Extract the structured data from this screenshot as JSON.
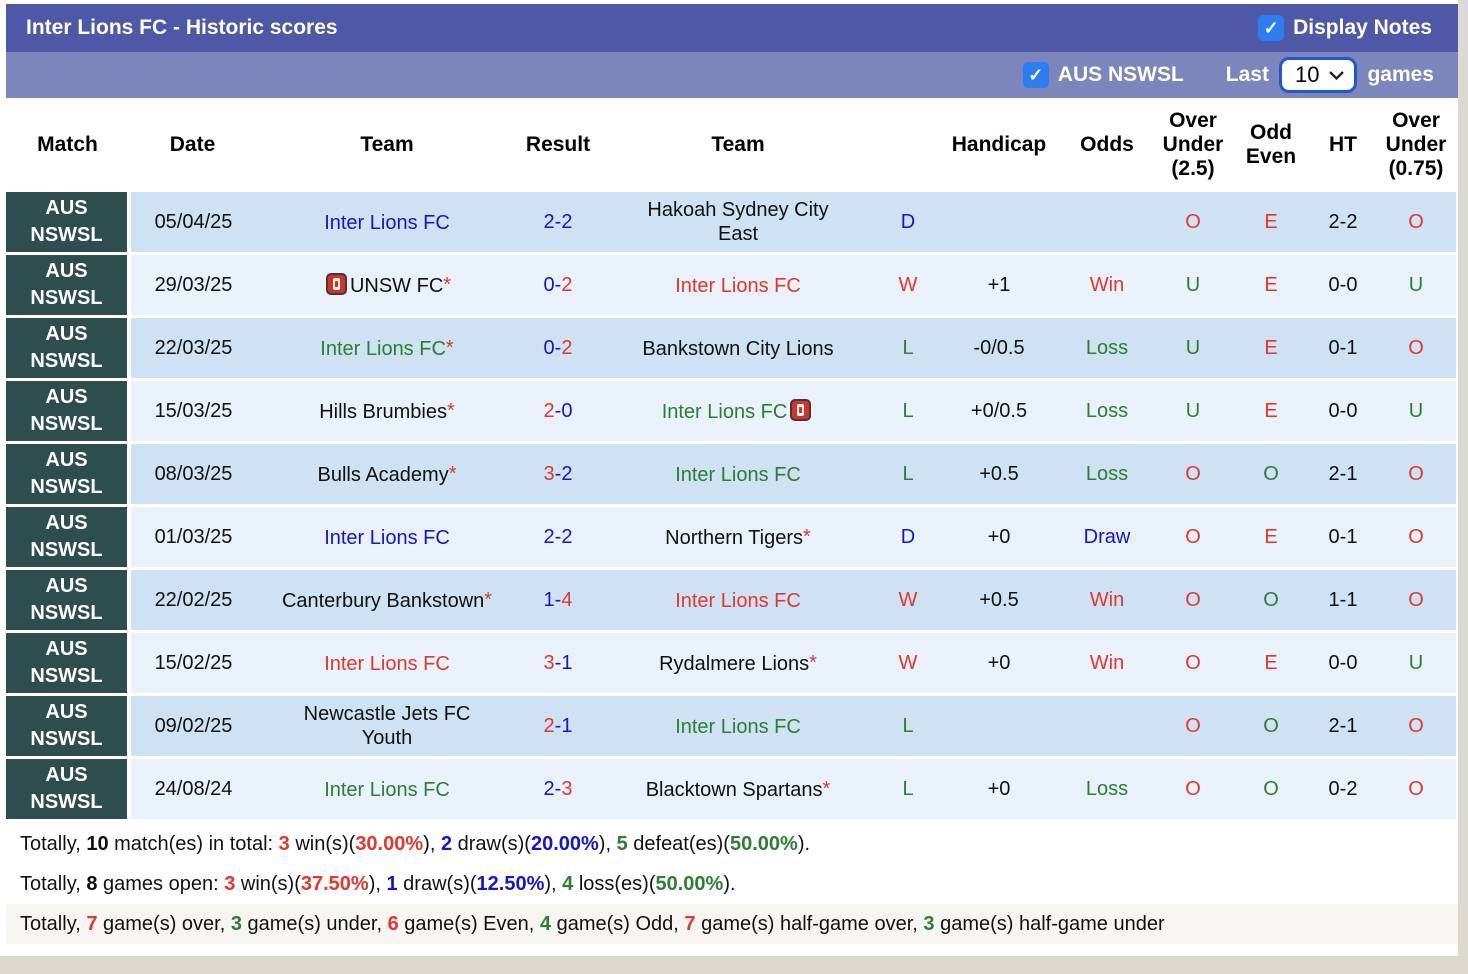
{
  "header": {
    "title": "Inter Lions FC - Historic scores",
    "display_notes": "Display Notes",
    "display_notes_checked": true,
    "league_filter": "AUS NSWSL",
    "league_checked": true,
    "last_label": "Last",
    "games_count": "10",
    "games_label": "games"
  },
  "colors": {
    "bar_dark": "#4e58a7",
    "bar_light": "#7c86bc",
    "league_cell": "#2e4d4d",
    "row_odd": "#cfe2f4",
    "row_even": "#e9f1fa",
    "win_red": "#e2372b",
    "draw_blue": "#1515cd",
    "loss_green": "#2e7d32",
    "checkbox_blue": "#2d7df2",
    "select_border": "#2356d0"
  },
  "table": {
    "columns": [
      {
        "label": "Match",
        "key": "match"
      },
      {
        "label": "Date",
        "key": "date"
      },
      {
        "label": "Team",
        "key": "home-team"
      },
      {
        "label": "Result",
        "key": "result"
      },
      {
        "label": "Team",
        "key": "away-team"
      },
      {
        "label": "",
        "key": "wdl"
      },
      {
        "label": "Handicap",
        "key": "handicap"
      },
      {
        "label": "Odds",
        "key": "odds"
      },
      {
        "label": "Over Under (2.5)",
        "key": "over-under-2-5"
      },
      {
        "label": "Odd Even",
        "key": "odd-even"
      },
      {
        "label": "HT",
        "key": "ht"
      },
      {
        "label": "Over Under (0.75)",
        "key": "over-under-0-75"
      }
    ],
    "rows": [
      {
        "league": "AUS NSWSL",
        "date": "05/04/25",
        "team1": {
          "name": "Inter Lions FC",
          "color": "blue",
          "asterisk": false,
          "redcard": ""
        },
        "score": {
          "home": "2",
          "home_color": "blue",
          "away": "2",
          "away_color": "blue"
        },
        "team2": {
          "name": "Hakoah Sydney City East",
          "color": "black",
          "asterisk": false,
          "redcard": ""
        },
        "wdl": {
          "text": "D",
          "color": "blue"
        },
        "handicap": "",
        "odds": {
          "text": "",
          "color": "black"
        },
        "over_under_25": {
          "text": "O",
          "color": "red"
        },
        "odd_even": {
          "text": "E",
          "color": "red"
        },
        "ht": "2-2",
        "over_under_075": {
          "text": "O",
          "color": "red"
        }
      },
      {
        "league": "AUS NSWSL",
        "date": "29/03/25",
        "team1": {
          "name": "UNSW FC",
          "color": "black",
          "asterisk": true,
          "redcard": "before"
        },
        "score": {
          "home": "0",
          "home_color": "blue",
          "away": "2",
          "away_color": "red"
        },
        "team2": {
          "name": "Inter Lions FC",
          "color": "red",
          "asterisk": false,
          "redcard": ""
        },
        "wdl": {
          "text": "W",
          "color": "red"
        },
        "handicap": "+1",
        "odds": {
          "text": "Win",
          "color": "red"
        },
        "over_under_25": {
          "text": "U",
          "color": "green"
        },
        "odd_even": {
          "text": "E",
          "color": "red"
        },
        "ht": "0-0",
        "over_under_075": {
          "text": "U",
          "color": "green"
        }
      },
      {
        "league": "AUS NSWSL",
        "date": "22/03/25",
        "team1": {
          "name": "Inter Lions FC",
          "color": "green",
          "asterisk": true,
          "redcard": ""
        },
        "score": {
          "home": "0",
          "home_color": "blue",
          "away": "2",
          "away_color": "red"
        },
        "team2": {
          "name": "Bankstown City Lions",
          "color": "black",
          "asterisk": false,
          "redcard": ""
        },
        "wdl": {
          "text": "L",
          "color": "green"
        },
        "handicap": "-0/0.5",
        "odds": {
          "text": "Loss",
          "color": "green"
        },
        "over_under_25": {
          "text": "U",
          "color": "green"
        },
        "odd_even": {
          "text": "E",
          "color": "red"
        },
        "ht": "0-1",
        "over_under_075": {
          "text": "O",
          "color": "red"
        }
      },
      {
        "league": "AUS NSWSL",
        "date": "15/03/25",
        "team1": {
          "name": "Hills Brumbies",
          "color": "black",
          "asterisk": true,
          "redcard": ""
        },
        "score": {
          "home": "2",
          "home_color": "red",
          "away": "0",
          "away_color": "blue"
        },
        "team2": {
          "name": "Inter Lions FC",
          "color": "green",
          "asterisk": false,
          "redcard": "after"
        },
        "wdl": {
          "text": "L",
          "color": "green"
        },
        "handicap": "+0/0.5",
        "odds": {
          "text": "Loss",
          "color": "green"
        },
        "over_under_25": {
          "text": "U",
          "color": "green"
        },
        "odd_even": {
          "text": "E",
          "color": "red"
        },
        "ht": "0-0",
        "over_under_075": {
          "text": "U",
          "color": "green"
        }
      },
      {
        "league": "AUS NSWSL",
        "date": "08/03/25",
        "team1": {
          "name": "Bulls Academy",
          "color": "black",
          "asterisk": true,
          "redcard": ""
        },
        "score": {
          "home": "3",
          "home_color": "red",
          "away": "2",
          "away_color": "blue"
        },
        "team2": {
          "name": "Inter Lions FC",
          "color": "green",
          "asterisk": false,
          "redcard": ""
        },
        "wdl": {
          "text": "L",
          "color": "green"
        },
        "handicap": "+0.5",
        "odds": {
          "text": "Loss",
          "color": "green"
        },
        "over_under_25": {
          "text": "O",
          "color": "red"
        },
        "odd_even": {
          "text": "O",
          "color": "green"
        },
        "ht": "2-1",
        "over_under_075": {
          "text": "O",
          "color": "red"
        }
      },
      {
        "league": "AUS NSWSL",
        "date": "01/03/25",
        "team1": {
          "name": "Inter Lions FC",
          "color": "blue",
          "asterisk": false,
          "redcard": ""
        },
        "score": {
          "home": "2",
          "home_color": "blue",
          "away": "2",
          "away_color": "blue"
        },
        "team2": {
          "name": "Northern Tigers",
          "color": "black",
          "asterisk": true,
          "redcard": ""
        },
        "wdl": {
          "text": "D",
          "color": "blue"
        },
        "handicap": "+0",
        "odds": {
          "text": "Draw",
          "color": "blue"
        },
        "over_under_25": {
          "text": "O",
          "color": "red"
        },
        "odd_even": {
          "text": "E",
          "color": "red"
        },
        "ht": "0-1",
        "over_under_075": {
          "text": "O",
          "color": "red"
        }
      },
      {
        "league": "AUS NSWSL",
        "date": "22/02/25",
        "team1": {
          "name": "Canterbury Bankstown",
          "color": "black",
          "asterisk": true,
          "redcard": ""
        },
        "score": {
          "home": "1",
          "home_color": "blue",
          "away": "4",
          "away_color": "red"
        },
        "team2": {
          "name": "Inter Lions FC",
          "color": "red",
          "asterisk": false,
          "redcard": ""
        },
        "wdl": {
          "text": "W",
          "color": "red"
        },
        "handicap": "+0.5",
        "odds": {
          "text": "Win",
          "color": "red"
        },
        "over_under_25": {
          "text": "O",
          "color": "red"
        },
        "odd_even": {
          "text": "O",
          "color": "green"
        },
        "ht": "1-1",
        "over_under_075": {
          "text": "O",
          "color": "red"
        }
      },
      {
        "league": "AUS NSWSL",
        "date": "15/02/25",
        "team1": {
          "name": "Inter Lions FC",
          "color": "red",
          "asterisk": false,
          "redcard": ""
        },
        "score": {
          "home": "3",
          "home_color": "red",
          "away": "1",
          "away_color": "blue"
        },
        "team2": {
          "name": "Rydalmere Lions",
          "color": "black",
          "asterisk": true,
          "redcard": ""
        },
        "wdl": {
          "text": "W",
          "color": "red"
        },
        "handicap": "+0",
        "odds": {
          "text": "Win",
          "color": "red"
        },
        "over_under_25": {
          "text": "O",
          "color": "red"
        },
        "odd_even": {
          "text": "E",
          "color": "red"
        },
        "ht": "0-0",
        "over_under_075": {
          "text": "U",
          "color": "green"
        }
      },
      {
        "league": "AUS NSWSL",
        "date": "09/02/25",
        "team1": {
          "name": "Newcastle Jets FC Youth",
          "color": "black",
          "asterisk": false,
          "redcard": ""
        },
        "score": {
          "home": "2",
          "home_color": "red",
          "away": "1",
          "away_color": "blue"
        },
        "team2": {
          "name": "Inter Lions FC",
          "color": "green",
          "asterisk": false,
          "redcard": ""
        },
        "wdl": {
          "text": "L",
          "color": "green"
        },
        "handicap": "",
        "odds": {
          "text": "",
          "color": "black"
        },
        "over_under_25": {
          "text": "O",
          "color": "red"
        },
        "odd_even": {
          "text": "O",
          "color": "green"
        },
        "ht": "2-1",
        "over_under_075": {
          "text": "O",
          "color": "red"
        }
      },
      {
        "league": "AUS NSWSL",
        "date": "24/08/24",
        "team1": {
          "name": "Inter Lions FC",
          "color": "green",
          "asterisk": false,
          "redcard": ""
        },
        "score": {
          "home": "2",
          "home_color": "blue",
          "away": "3",
          "away_color": "red"
        },
        "team2": {
          "name": "Blacktown Spartans",
          "color": "black",
          "asterisk": true,
          "redcard": ""
        },
        "wdl": {
          "text": "L",
          "color": "green"
        },
        "handicap": "+0",
        "odds": {
          "text": "Loss",
          "color": "green"
        },
        "over_under_25": {
          "text": "O",
          "color": "red"
        },
        "odd_even": {
          "text": "O",
          "color": "green"
        },
        "ht": "0-2",
        "over_under_075": {
          "text": "O",
          "color": "red"
        }
      }
    ]
  },
  "totals": {
    "lines": [
      [
        {
          "t": "Totally, "
        },
        {
          "t": "10",
          "b": true
        },
        {
          "t": " match(es) in total: "
        },
        {
          "t": "3",
          "c": "red",
          "b": true
        },
        {
          "t": " win(s)("
        },
        {
          "t": "30.00%",
          "c": "red",
          "b": true
        },
        {
          "t": "), "
        },
        {
          "t": "2",
          "c": "blue",
          "b": true
        },
        {
          "t": " draw(s)("
        },
        {
          "t": "20.00%",
          "c": "blue",
          "b": true
        },
        {
          "t": "), "
        },
        {
          "t": "5",
          "c": "green",
          "b": true
        },
        {
          "t": " defeat(es)("
        },
        {
          "t": "50.00%",
          "c": "green",
          "b": true
        },
        {
          "t": ")."
        }
      ],
      [
        {
          "t": "Totally, "
        },
        {
          "t": "8",
          "b": true
        },
        {
          "t": " games open: "
        },
        {
          "t": "3",
          "c": "red",
          "b": true
        },
        {
          "t": " win(s)("
        },
        {
          "t": "37.50%",
          "c": "red",
          "b": true
        },
        {
          "t": "), "
        },
        {
          "t": "1",
          "c": "blue",
          "b": true
        },
        {
          "t": " draw(s)("
        },
        {
          "t": "12.50%",
          "c": "blue",
          "b": true
        },
        {
          "t": "), "
        },
        {
          "t": "4",
          "c": "green",
          "b": true
        },
        {
          "t": " loss(es)("
        },
        {
          "t": "50.00%",
          "c": "green",
          "b": true
        },
        {
          "t": ")."
        }
      ],
      [
        {
          "t": "Totally, "
        },
        {
          "t": "7",
          "c": "red",
          "b": true
        },
        {
          "t": " game(s) over, "
        },
        {
          "t": "3",
          "c": "green",
          "b": true
        },
        {
          "t": " game(s) under, "
        },
        {
          "t": "6",
          "c": "red",
          "b": true
        },
        {
          "t": " game(s) Even, "
        },
        {
          "t": "4",
          "c": "green",
          "b": true
        },
        {
          "t": " game(s) Odd, "
        },
        {
          "t": "7",
          "c": "red",
          "b": true
        },
        {
          "t": " game(s) half-game over, "
        },
        {
          "t": "3",
          "c": "green",
          "b": true
        },
        {
          "t": " game(s) half-game under"
        }
      ]
    ]
  }
}
